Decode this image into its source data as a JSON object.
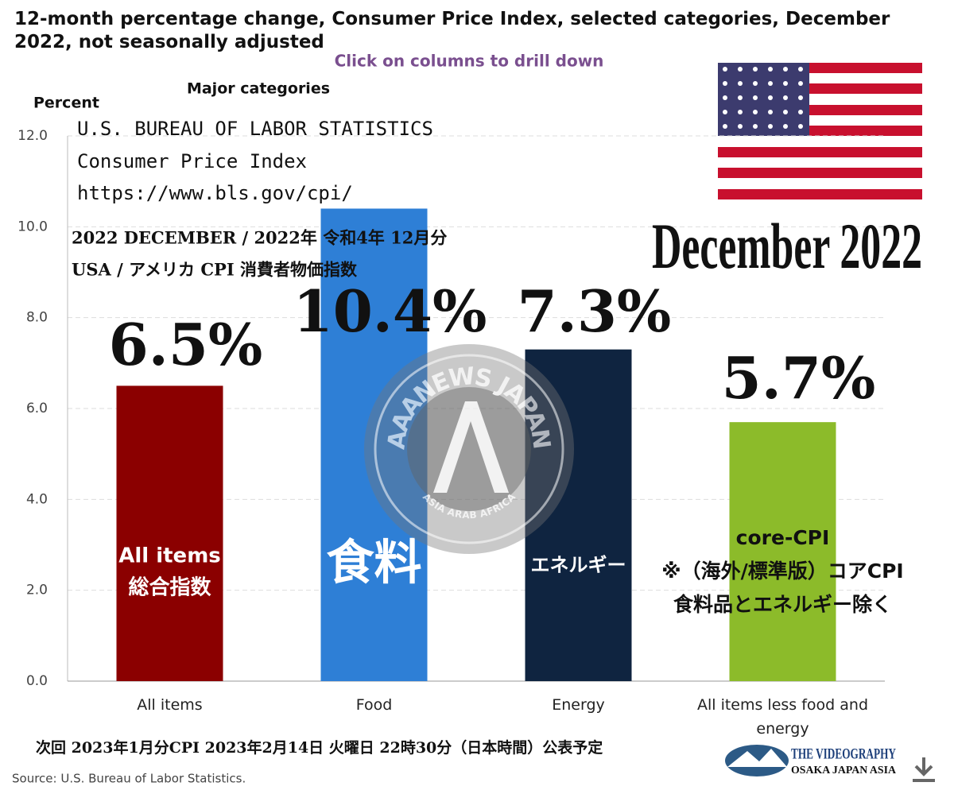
{
  "chart_data": {
    "type": "bar",
    "title": "12-month percentage change, Consumer Price Index, selected categories, December 2022, not seasonally adjusted",
    "subtitle": "Click on columns to drill down",
    "series_title": "Major categories",
    "y_label": "Percent",
    "categories": [
      "All items",
      "Food",
      "Energy",
      "All items less food and energy"
    ],
    "values": [
      6.5,
      10.4,
      7.3,
      5.7
    ],
    "value_labels": [
      "6.5%",
      "10.4%",
      "7.3%",
      "5.7%"
    ],
    "colors": [
      "#8b0000",
      "#2e7fd6",
      "#0f2440",
      "#8cbb2a"
    ],
    "ylim": [
      0,
      12
    ],
    "yticks": [
      {
        "value": 0,
        "label": "0.0"
      },
      {
        "value": 2,
        "label": "2.0"
      },
      {
        "value": 4,
        "label": "4.0"
      },
      {
        "value": 6,
        "label": "6.0"
      },
      {
        "value": 8,
        "label": "8.0"
      },
      {
        "value": 10,
        "label": "10.0"
      },
      {
        "value": 12,
        "label": "12.0"
      }
    ],
    "grid": true,
    "bar_labels": [
      [
        "All items",
        "総合指数"
      ],
      [
        "食料"
      ],
      [
        "エネルギー"
      ],
      [
        "core-CPI",
        "※（海外/標準版）コアCPI",
        "食料品とエネルギー除く"
      ]
    ],
    "source": "Source: U.S. Bureau of Labor Statistics."
  },
  "overlay": {
    "bls_lines": [
      "U.S. BUREAU OF LABOR STATISTICS",
      "Consumer Price Index",
      "https://www.bls.gov/cpi/"
    ],
    "period_lines": [
      "2022 DECEMBER / 2022年 令和4年 12月分",
      "USA / アメリカ CPI 消費者物価指数"
    ],
    "headline": "December 2022",
    "next_release": "次回 2023年1月分CPI 2023年2月14日 火曜日 22時30分（日本時間）公表予定",
    "watermark": [
      "AAANEWS JAPAN",
      "ASIA ARAB AFRICA"
    ],
    "logo": [
      "THE VIDEOGRAPHY",
      "OSAKA JAPAN ASIA"
    ]
  }
}
